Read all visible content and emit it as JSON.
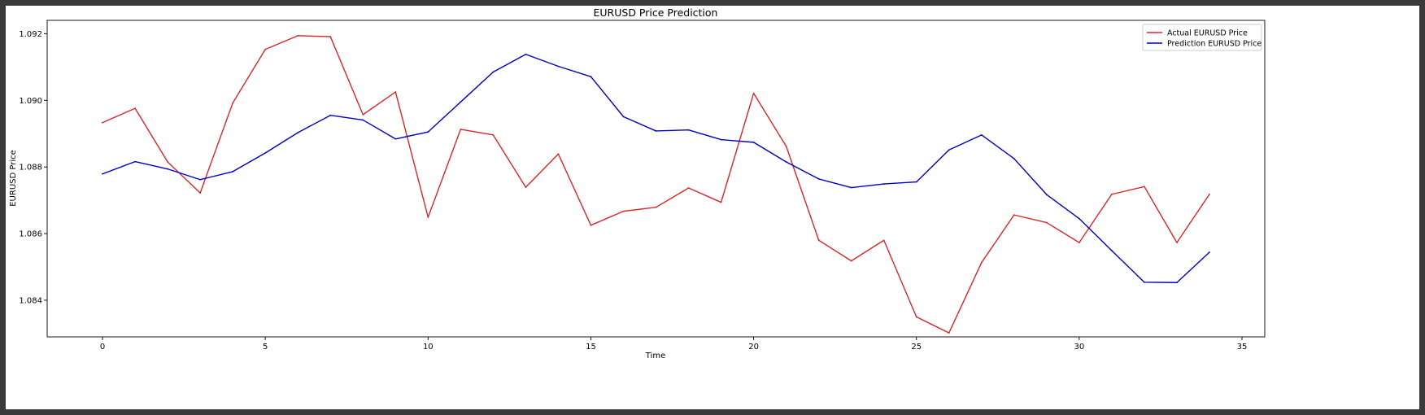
{
  "chart_data": {
    "type": "line",
    "title": "EURUSD Price Prediction",
    "xlabel": "Time",
    "ylabel": "EURUSD Price",
    "xlim": [
      -1.7,
      35.7
    ],
    "ylim": [
      1.0829,
      1.0924
    ],
    "x_ticks": [
      0,
      5,
      10,
      15,
      20,
      25,
      30,
      35
    ],
    "x_tick_labels": [
      "0",
      "5",
      "10",
      "15",
      "20",
      "25",
      "30",
      "35"
    ],
    "y_ticks": [
      1.084,
      1.086,
      1.088,
      1.09,
      1.092
    ],
    "y_tick_labels": [
      "1.084",
      "1.086",
      "1.088",
      "1.090",
      "1.092"
    ],
    "grid": false,
    "legend_position": "top-right",
    "x": [
      0,
      1,
      2,
      3,
      4,
      5,
      6,
      7,
      8,
      9,
      10,
      11,
      12,
      13,
      14,
      15,
      16,
      17,
      18,
      19,
      20,
      21,
      22,
      23,
      24,
      25,
      26,
      27,
      28,
      29,
      30,
      31,
      32,
      33,
      34
    ],
    "series": [
      {
        "name": "Actual EURUSD Price",
        "color": "#d62728",
        "values": [
          1.08933,
          1.08976,
          1.08815,
          1.08722,
          1.08992,
          1.09153,
          1.09194,
          1.09191,
          1.08957,
          1.09025,
          1.08649,
          1.08913,
          1.08896,
          1.08739,
          1.08839,
          1.08625,
          1.08667,
          1.08679,
          1.08737,
          1.08694,
          1.09021,
          1.08862,
          1.0858,
          1.08518,
          1.0858,
          1.0835,
          1.08302,
          1.08513,
          1.08656,
          1.08633,
          1.08573,
          1.08718,
          1.08741,
          1.08573,
          1.08718
        ]
      },
      {
        "name": "Prediction EURUSD Price",
        "color": "#0000c0",
        "values": [
          1.08779,
          1.08816,
          1.08794,
          1.08762,
          1.08786,
          1.08842,
          1.08903,
          1.08955,
          1.08941,
          1.08884,
          1.08905,
          1.08995,
          1.09085,
          1.09138,
          1.09102,
          1.09071,
          1.08951,
          1.08908,
          1.08911,
          1.08882,
          1.08874,
          1.08815,
          1.08764,
          1.08738,
          1.08749,
          1.08755,
          1.08851,
          1.08896,
          1.08825,
          1.08717,
          1.08645,
          1.08549,
          1.08454,
          1.08453,
          1.08544
        ]
      }
    ]
  }
}
